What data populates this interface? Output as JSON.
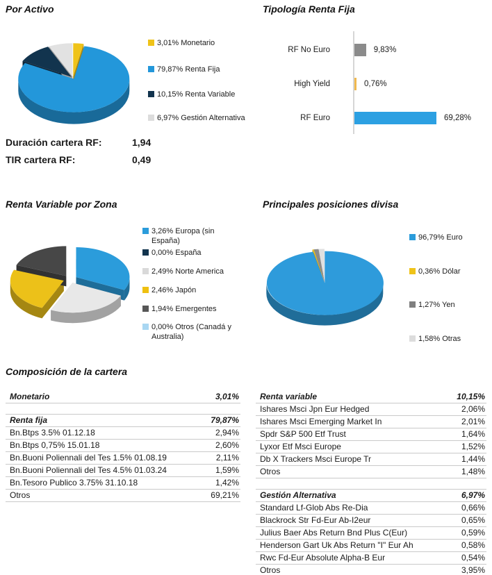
{
  "charts": {
    "por_activo": {
      "title": "Por Activo",
      "legend": [
        {
          "label": "3,01% Monetario",
          "color": "#EFC319"
        },
        {
          "label": "79,87% Renta Fija",
          "color": "#2397DA"
        },
        {
          "label": "10,15% Renta Variable",
          "color": "#12344E"
        },
        {
          "label": "6,97% Gestión Alternativa",
          "color": "#DCDCDC"
        }
      ],
      "stats": [
        {
          "label": "Duración cartera RF:",
          "value": "1,94"
        },
        {
          "label": "TIR cartera RF:",
          "value": "0,49"
        }
      ]
    },
    "tipologia": {
      "title": "Tipología Renta Fija"
    },
    "zona": {
      "title": "Renta Variable por Zona",
      "legend": [
        {
          "label": "3,26% Europa (sin\nEspaña)",
          "color": "#2B9CDB"
        },
        {
          "label": "0,00% España",
          "color": "#12344E"
        },
        {
          "label": "2,49% Norte America",
          "color": "#D9D9D9"
        },
        {
          "label": "2,46% Japón",
          "color": "#EFC010"
        },
        {
          "label": "1,94% Emergentes",
          "color": "#575757"
        },
        {
          "label": "0,00% Otros (Canadá y\nAustralia)",
          "color": "#A9D7F2"
        }
      ]
    },
    "divisa": {
      "title": "Principales posiciones divisa",
      "legend": [
        {
          "label": "96,79% Euro",
          "color": "#2B9CDB"
        },
        {
          "label": "0,36% Dólar",
          "color": "#EFC319"
        },
        {
          "label": "1,27% Yen",
          "color": "#7F7F7F"
        },
        {
          "label": "1,58% Otras",
          "color": "#DCDCDC"
        }
      ]
    }
  },
  "chart_data": [
    {
      "id": "por_activo",
      "type": "pie",
      "title": "Por Activo",
      "labels": [
        "Monetario",
        "Renta Fija",
        "Renta Variable",
        "Gestión Alternativa"
      ],
      "values": [
        3.01,
        79.87,
        10.15,
        6.97
      ],
      "colors": [
        "#EFC319",
        "#2397DA",
        "#12344E",
        "#E2E2E2"
      ]
    },
    {
      "id": "tipologia",
      "type": "bar",
      "orientation": "horizontal",
      "title": "Tipología Renta Fija",
      "categories": [
        "RF No Euro",
        "High Yield",
        "RF Euro"
      ],
      "values": [
        9.83,
        0.76,
        69.28
      ],
      "value_labels": [
        "9,83%",
        "0,76%",
        "69,28%"
      ],
      "colors": [
        "#8B8B8B",
        "#F0B84E",
        "#2CA0E2"
      ],
      "xlim": [
        0,
        80
      ]
    },
    {
      "id": "zona",
      "type": "pie",
      "title": "Renta Variable por Zona",
      "labels": [
        "Europa (sin España)",
        "España",
        "Norte America",
        "Japón",
        "Emergentes",
        "Otros (Canadá y Australia)"
      ],
      "values": [
        3.26,
        0.0,
        2.49,
        2.46,
        1.94,
        0.0
      ],
      "colors": [
        "#2B9CDB",
        "#12344E",
        "#E8E8E8",
        "#ECC119",
        "#474747",
        "#A9D7F2"
      ]
    },
    {
      "id": "divisa",
      "type": "pie",
      "title": "Principales posiciones divisa",
      "labels": [
        "Euro",
        "Dólar",
        "Yen",
        "Otras"
      ],
      "values": [
        96.79,
        0.36,
        1.27,
        1.58
      ],
      "colors": [
        "#2E9BDB",
        "#EFC319",
        "#8B8B8B",
        "#E0E0E0"
      ]
    }
  ],
  "composition": {
    "heading": "Composición de la cartera",
    "left_sections": [
      {
        "header": "Monetario",
        "value": "3,01%",
        "rows": []
      },
      {
        "header": "Renta fija",
        "value": "79,87%",
        "rows": [
          {
            "name": "Bn.Btps 3.5% 01.12.18",
            "pct": "2,94%"
          },
          {
            "name": "Bn.Btps 0,75% 15.01.18",
            "pct": "2,60%"
          },
          {
            "name": "Bn.Buoni Poliennali del Tes 1.5% 01.08.19",
            "pct": "2,11%"
          },
          {
            "name": "Bn.Buoni Poliennali del Tes 4.5% 01.03.24",
            "pct": "1,59%"
          },
          {
            "name": "Bn.Tesoro Publico 3.75% 31.10.18",
            "pct": "1,42%"
          },
          {
            "name": "Otros",
            "pct": "69,21%"
          }
        ]
      }
    ],
    "right_sections": [
      {
        "header": "Renta variable",
        "value": "10,15%",
        "rows": [
          {
            "name": "Ishares Msci Jpn Eur Hedged",
            "pct": "2,06%"
          },
          {
            "name": "Ishares Msci Emerging Market In",
            "pct": "2,01%"
          },
          {
            "name": "Spdr S&P 500 Etf Trust",
            "pct": "1,64%"
          },
          {
            "name": "Lyxor Etf Msci Europe",
            "pct": "1,52%"
          },
          {
            "name": "Db X Trackers Msci Europe Tr",
            "pct": "1,44%"
          },
          {
            "name": "Otros",
            "pct": "1,48%"
          }
        ]
      },
      {
        "header": "Gestión Alternativa",
        "value": "6,97%",
        "rows": [
          {
            "name": "Standard Lf-Glob Abs Re-Dia",
            "pct": "0,66%"
          },
          {
            "name": "Blackrock Str Fd-Eur Ab-I2eur",
            "pct": "0,65%"
          },
          {
            "name": "Julius Baer Abs Return Bnd Plus C(Eur)",
            "pct": "0,59%"
          },
          {
            "name": "Henderson Gart Uk Abs Return \"I\"  Eur Ah",
            "pct": "0,58%"
          },
          {
            "name": "Rwc Fd-Eur Absolute Alpha-B Eur",
            "pct": "0,54%"
          },
          {
            "name": "Otros",
            "pct": "3,95%"
          }
        ]
      }
    ]
  }
}
